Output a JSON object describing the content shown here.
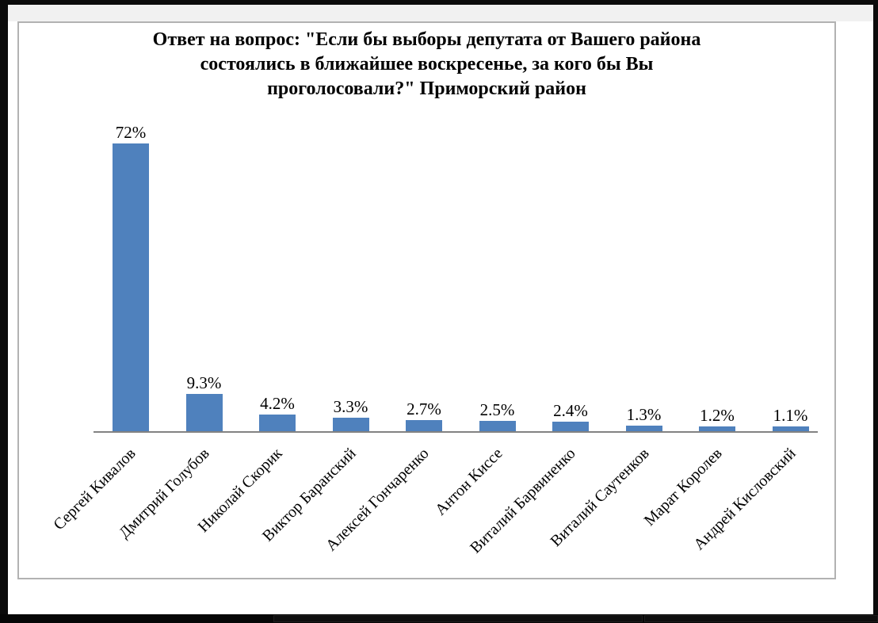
{
  "chart_data": {
    "type": "bar",
    "title": "Ответ на вопрос: \"Если бы выборы депутата от Вашего района состоялись в ближайшее воскресенье, за кого бы Вы проголосовали?\" Приморский район",
    "title_lines": [
      "Ответ на вопрос: \"Если бы выборы депутата от Вашего района",
      "состоялись в ближайшее воскресенье, за кого бы Вы",
      "проголосовали?\" Приморский район"
    ],
    "categories": [
      "Сергей Кивалов",
      "Дмитрий Голубов",
      "Николай Скорик",
      "Виктор Баранский",
      "Алексей Гончаренко",
      "Антон Киссе",
      "Виталий Барвиненко",
      "Виталий Саутенков",
      "Марат Королев",
      "Андрей Кисловский"
    ],
    "values": [
      72,
      9.3,
      4.2,
      3.3,
      2.7,
      2.5,
      2.4,
      1.3,
      1.2,
      1.1
    ],
    "value_labels": [
      "72%",
      "9.3%",
      "4.2%",
      "3.3%",
      "2.7%",
      "2.5%",
      "2.4%",
      "1.3%",
      "1.2%",
      "1.1%"
    ],
    "xlabel": "",
    "ylabel": "",
    "ylim": [
      0,
      80
    ],
    "grid": false,
    "legend": false,
    "bar_color": "#4F81BD",
    "axis_color": "#828282",
    "title_color": "#000000",
    "label_color": "#000000"
  }
}
